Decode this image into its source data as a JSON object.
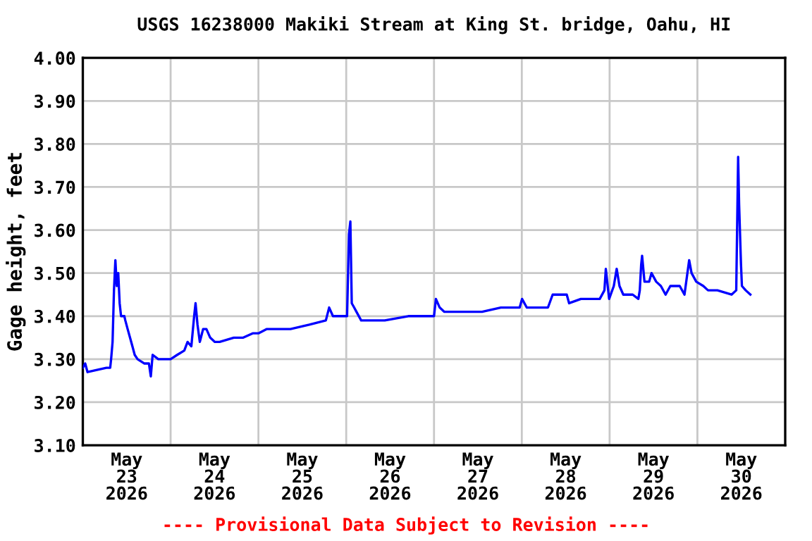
{
  "chart_data": {
    "type": "line",
    "title": "USGS 16238000 Makiki Stream at King St. bridge, Oahu, HI",
    "ylabel": "Gage height, feet",
    "annotations": [
      "---- Provisional Data Subject to Revision ----"
    ],
    "grid": true,
    "legend": false,
    "marker": "none",
    "line_style": "solid",
    "xlim": [
      "2026-05-23T00:00",
      "2026-05-31T00:00"
    ],
    "xticks": [
      {
        "value": "2026-05-23T12:00",
        "label": "May\n23\n2026"
      },
      {
        "value": "2026-05-24T12:00",
        "label": "May\n24\n2026"
      },
      {
        "value": "2026-05-25T12:00",
        "label": "May\n25\n2026"
      },
      {
        "value": "2026-05-26T12:00",
        "label": "May\n26\n2026"
      },
      {
        "value": "2026-05-27T12:00",
        "label": "May\n27\n2026"
      },
      {
        "value": "2026-05-28T12:00",
        "label": "May\n28\n2026"
      },
      {
        "value": "2026-05-29T12:00",
        "label": "May\n29\n2026"
      },
      {
        "value": "2026-05-30T12:00",
        "label": "May\n30\n2026"
      },
      {
        "value": "2026-05-24T00:00",
        "label": null
      },
      {
        "value": "2026-05-25T00:00",
        "label": null
      },
      {
        "value": "2026-05-26T00:00",
        "label": null
      },
      {
        "value": "2026-05-27T00:00",
        "label": null
      },
      {
        "value": "2026-05-28T00:00",
        "label": null
      },
      {
        "value": "2026-05-29T00:00",
        "label": null
      },
      {
        "value": "2026-05-30T00:00",
        "label": null
      }
    ],
    "ylim": [
      3.1,
      4.0
    ],
    "yticks": [
      {
        "value": 3.1,
        "label": "3.10"
      },
      {
        "value": 3.2,
        "label": "3.20"
      },
      {
        "value": 3.3,
        "label": "3.30"
      },
      {
        "value": 3.4,
        "label": "3.40"
      },
      {
        "value": 3.5,
        "label": "3.50"
      },
      {
        "value": 3.6,
        "label": "3.60"
      },
      {
        "value": 3.7,
        "label": "3.70"
      },
      {
        "value": 3.8,
        "label": "3.80"
      },
      {
        "value": 3.9,
        "label": "3.90"
      },
      {
        "value": 4.0,
        "label": "4.00"
      }
    ],
    "series": [
      {
        "color": "#0000ff",
        "x": [
          "2026-05-23T00:00",
          "2026-05-23T00:39",
          "2026-05-23T01:17",
          "2026-05-23T06:27",
          "2026-05-23T07:29",
          "2026-05-23T07:44",
          "2026-05-23T08:08",
          "2026-05-23T08:31",
          "2026-05-23T08:54",
          "2026-05-23T09:17",
          "2026-05-23T09:41",
          "2026-05-23T10:04",
          "2026-05-23T10:27",
          "2026-05-23T11:21",
          "2026-05-23T11:37",
          "2026-05-23T12:15",
          "2026-05-23T12:54",
          "2026-05-23T13:33",
          "2026-05-23T14:11",
          "2026-05-23T14:58",
          "2026-05-23T16:46",
          "2026-05-23T18:04",
          "2026-05-23T18:35",
          "2026-05-23T19:05",
          "2026-05-23T20:38",
          "2026-05-24T00:00",
          "2026-05-24T01:48",
          "2026-05-24T03:44",
          "2026-05-24T04:38",
          "2026-05-24T05:40",
          "2026-05-24T06:26",
          "2026-05-24T06:49",
          "2026-05-24T07:21",
          "2026-05-24T07:59",
          "2026-05-24T08:53",
          "2026-05-24T09:47",
          "2026-05-24T10:49",
          "2026-05-24T12:06",
          "2026-05-24T13:24",
          "2026-05-24T17:16",
          "2026-05-24T19:51",
          "2026-05-24T22:26",
          "2026-05-25T00:00",
          "2026-05-25T02:19",
          "2026-05-25T08:46",
          "2026-05-25T13:55",
          "2026-05-25T18:26",
          "2026-05-25T19:20",
          "2026-05-25T20:22",
          "2026-05-25T22:57",
          "2026-05-26T00:14",
          "2026-05-26T00:45",
          "2026-05-26T01:08",
          "2026-05-26T01:31",
          "2026-05-26T02:10",
          "2026-05-26T02:48",
          "2026-05-26T04:05",
          "2026-05-26T10:32",
          "2026-05-26T17:00",
          "2026-05-27T00:00",
          "2026-05-27T00:31",
          "2026-05-27T01:33",
          "2026-05-27T02:50",
          "2026-05-27T08:00",
          "2026-05-27T13:08",
          "2026-05-27T18:16",
          "2026-05-27T23:25",
          "2026-05-28T00:04",
          "2026-05-28T01:21",
          "2026-05-28T07:09",
          "2026-05-28T08:26",
          "2026-05-28T12:17",
          "2026-05-28T12:56",
          "2026-05-28T16:09",
          "2026-05-28T21:18",
          "2026-05-28T22:35",
          "2026-05-28T22:58",
          "2026-05-28T23:52",
          "2026-05-29T01:09",
          "2026-05-29T01:56",
          "2026-05-29T02:42",
          "2026-05-29T03:44",
          "2026-05-29T06:19",
          "2026-05-29T07:52",
          "2026-05-29T08:15",
          "2026-05-29T08:38",
          "2026-05-29T08:53",
          "2026-05-29T09:32",
          "2026-05-29T10:49",
          "2026-05-29T11:27",
          "2026-05-29T12:44",
          "2026-05-29T14:01",
          "2026-05-29T15:18",
          "2026-05-29T16:36",
          "2026-05-29T19:10",
          "2026-05-29T20:28",
          "2026-05-29T21:45",
          "2026-05-29T22:24",
          "2026-05-29T23:41",
          "2026-05-30T01:37",
          "2026-05-30T02:54",
          "2026-05-30T05:28",
          "2026-05-30T09:20",
          "2026-05-30T10:37",
          "2026-05-30T11:08",
          "2026-05-30T11:24",
          "2026-05-30T11:55",
          "2026-05-30T12:10",
          "2026-05-30T13:12",
          "2026-05-30T14:29"
        ],
        "values": [
          3.28,
          3.29,
          3.27,
          3.28,
          3.28,
          3.3,
          3.34,
          3.46,
          3.53,
          3.47,
          3.5,
          3.43,
          3.4,
          3.4,
          3.39,
          3.37,
          3.35,
          3.33,
          3.31,
          3.3,
          3.29,
          3.29,
          3.26,
          3.31,
          3.3,
          3.3,
          3.31,
          3.32,
          3.34,
          3.33,
          3.4,
          3.43,
          3.38,
          3.34,
          3.37,
          3.37,
          3.35,
          3.34,
          3.34,
          3.35,
          3.35,
          3.36,
          3.36,
          3.37,
          3.37,
          3.38,
          3.39,
          3.42,
          3.4,
          3.4,
          3.4,
          3.59,
          3.62,
          3.43,
          3.42,
          3.41,
          3.39,
          3.39,
          3.4,
          3.4,
          3.44,
          3.42,
          3.41,
          3.41,
          3.41,
          3.42,
          3.42,
          3.44,
          3.42,
          3.42,
          3.45,
          3.45,
          3.43,
          3.44,
          3.44,
          3.46,
          3.51,
          3.44,
          3.47,
          3.51,
          3.47,
          3.45,
          3.45,
          3.44,
          3.46,
          3.52,
          3.54,
          3.48,
          3.48,
          3.5,
          3.48,
          3.47,
          3.45,
          3.47,
          3.47,
          3.45,
          3.53,
          3.5,
          3.48,
          3.47,
          3.46,
          3.46,
          3.45,
          3.46,
          3.77,
          3.66,
          3.52,
          3.47,
          3.46,
          3.45
        ]
      }
    ]
  }
}
